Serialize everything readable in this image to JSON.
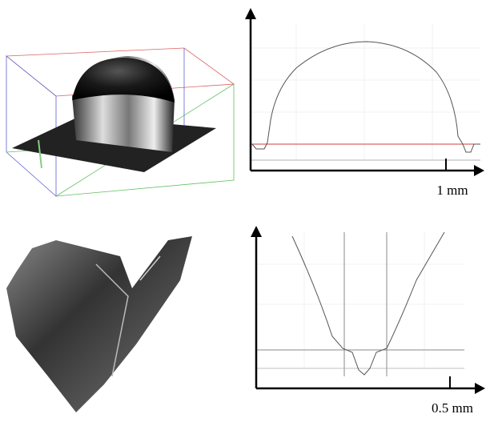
{
  "scale_bars": [
    {
      "label": "1 mm"
    },
    {
      "label": "0.5 mm"
    }
  ]
}
